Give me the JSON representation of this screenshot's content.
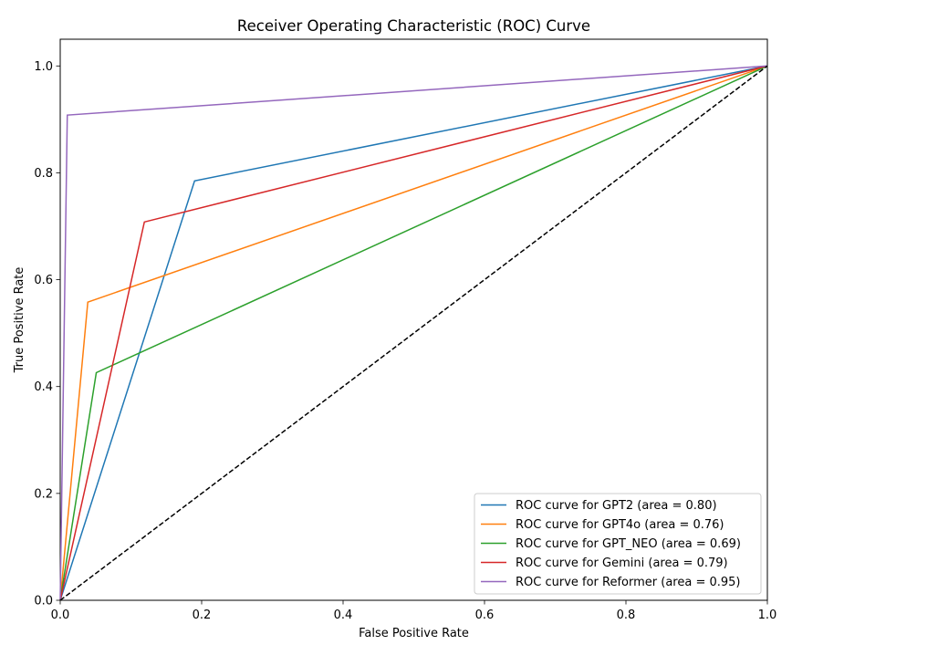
{
  "chart_data": {
    "type": "line",
    "title": "Receiver Operating Characteristic (ROC) Curve",
    "xlabel": "False Positive Rate",
    "ylabel": "True Positive Rate",
    "xlim": [
      0.0,
      1.0
    ],
    "ylim": [
      0.0,
      1.05
    ],
    "xticks": [
      0.0,
      0.2,
      0.4,
      0.6,
      0.8,
      1.0
    ],
    "xtick_labels": [
      "0.0",
      "0.2",
      "0.4",
      "0.6",
      "0.8",
      "1.0"
    ],
    "yticks": [
      0.0,
      0.2,
      0.4,
      0.6,
      0.8,
      1.0
    ],
    "ytick_labels": [
      "0.0",
      "0.2",
      "0.4",
      "0.6",
      "0.8",
      "1.0"
    ],
    "grid": false,
    "legend_position": "lower right",
    "series": [
      {
        "name": "ROC curve for GPT2 (area = 0.80)",
        "color": "#1f77b4",
        "x": [
          0.0,
          0.19,
          1.0
        ],
        "y": [
          0.0,
          0.785,
          1.0
        ]
      },
      {
        "name": "ROC curve for GPT4o (area = 0.76)",
        "color": "#ff7f0e",
        "x": [
          0.0,
          0.039,
          1.0
        ],
        "y": [
          0.0,
          0.558,
          1.0
        ]
      },
      {
        "name": "ROC curve for GPT_NEO (area = 0.69)",
        "color": "#2ca02c",
        "x": [
          0.0,
          0.051,
          1.0
        ],
        "y": [
          0.0,
          0.426,
          1.0
        ]
      },
      {
        "name": "ROC curve for Gemini (area = 0.79)",
        "color": "#d62728",
        "x": [
          0.0,
          0.119,
          1.0
        ],
        "y": [
          0.0,
          0.708,
          1.0
        ]
      },
      {
        "name": "ROC curve for Reformer (area = 0.95)",
        "color": "#9467bd",
        "x": [
          0.0,
          0.01,
          1.0
        ],
        "y": [
          0.0,
          0.908,
          1.0
        ]
      }
    ],
    "reference_line": {
      "x": [
        0.0,
        1.0
      ],
      "y": [
        0.0,
        1.0
      ],
      "color": "#000000",
      "style": "dashed"
    }
  }
}
